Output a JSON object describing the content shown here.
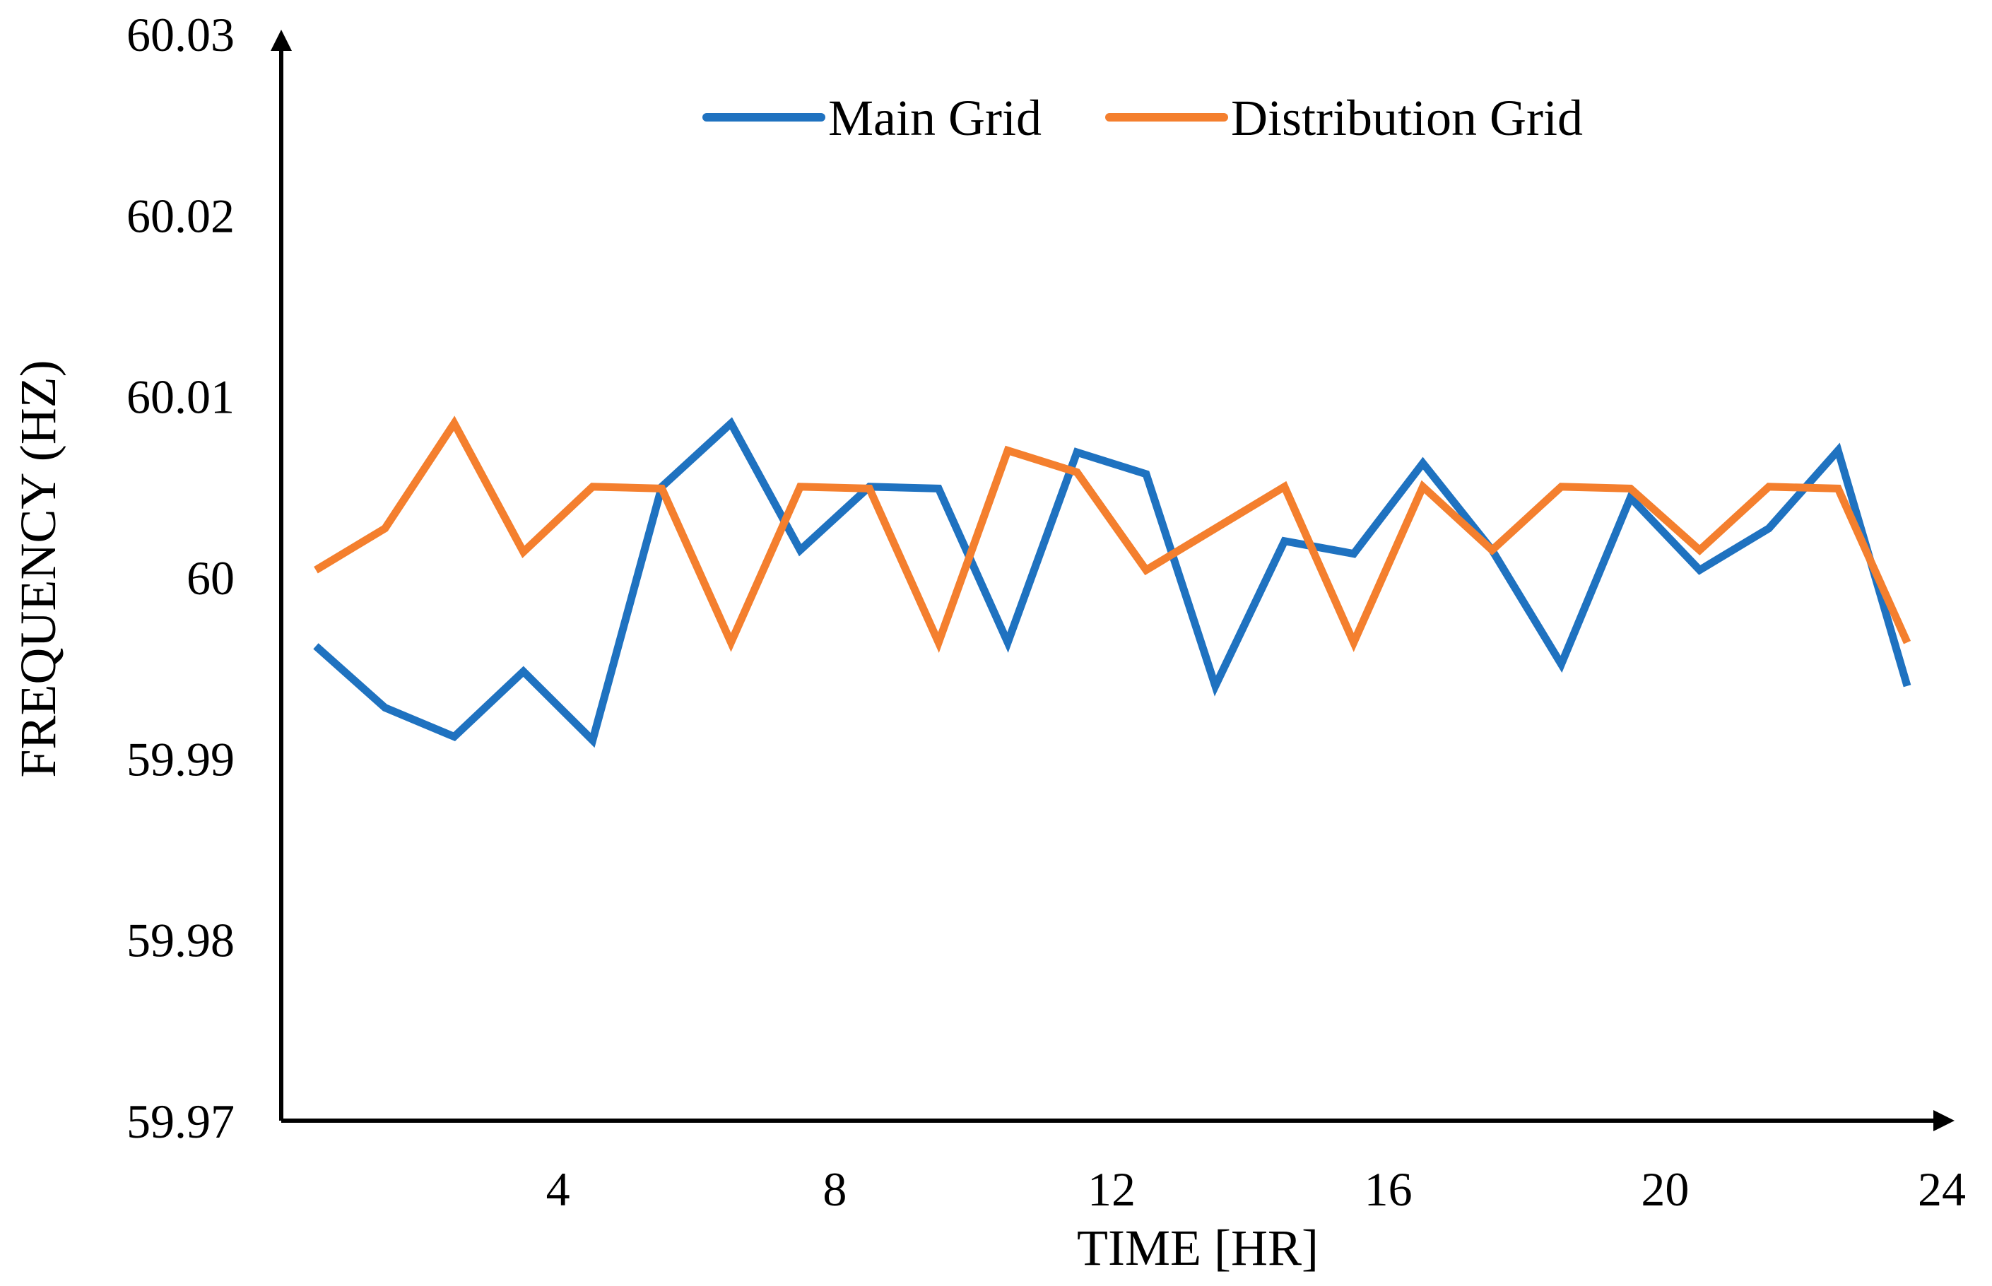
{
  "chart_data": {
    "type": "line",
    "title": "",
    "xlabel": "TIME [HR]",
    "ylabel": "FREQUENCY (HZ)",
    "xlim": [
      0,
      24
    ],
    "ylim": [
      59.97,
      60.03
    ],
    "x_ticks": [
      4,
      8,
      12,
      16,
      20,
      24
    ],
    "x_tick_labels": [
      "4",
      "8",
      "12",
      "16",
      "20",
      "24"
    ],
    "y_ticks": [
      59.97,
      59.98,
      59.99,
      60,
      60.01,
      60.02,
      60.03
    ],
    "y_tick_labels": [
      "59.97",
      "59.98",
      "59.99",
      "60",
      "60.01",
      "60.02",
      "60.03"
    ],
    "grid": false,
    "legend_position": "top-center",
    "x": [
      0.5,
      1.5,
      2.5,
      3.5,
      4.5,
      5.5,
      6.5,
      7.5,
      8.5,
      9.5,
      10.5,
      11.5,
      12.5,
      13.5,
      14.5,
      15.5,
      16.5,
      17.5,
      18.5,
      19.5,
      20.5,
      21.5,
      22.5,
      23.5
    ],
    "series": [
      {
        "name": "Main Grid",
        "color": "#1F72C0",
        "values": [
          59.9962,
          59.9928,
          59.9912,
          59.9948,
          59.991,
          60.005,
          60.0085,
          60.0015,
          60.005,
          60.0049,
          59.9964,
          60.0069,
          60.0057,
          59.994,
          60.002,
          60.0013,
          60.0063,
          60.0015,
          59.9952,
          60.0044,
          60.0004,
          60.0027,
          60.007,
          59.994
        ]
      },
      {
        "name": "Distribution Grid",
        "color": "#F47F2E",
        "values": [
          60.0004,
          60.0027,
          60.0085,
          60.0014,
          60.005,
          60.0049,
          59.9964,
          60.005,
          60.0049,
          59.9964,
          60.007,
          60.0058,
          60.0004,
          60.0027,
          60.005,
          59.9964,
          60.005,
          60.0015,
          60.005,
          60.0049,
          60.0015,
          60.005,
          60.0049,
          59.9964
        ]
      }
    ]
  }
}
